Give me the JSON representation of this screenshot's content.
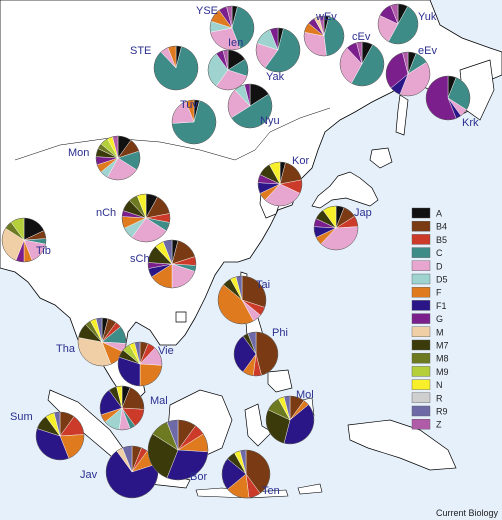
{
  "colors": {
    "A": "#111111",
    "B4": "#7a3b14",
    "B5": "#cc3b2a",
    "C": "#3d8c88",
    "D": "#e7a6cf",
    "D5": "#9fd3cf",
    "F": "#e07a1f",
    "F1": "#2b1688",
    "G": "#7b1f8c",
    "M": "#f1cfa6",
    "M7": "#3a3a0a",
    "M8": "#6d7a22",
    "M9": "#b4cf3a",
    "N": "#f7ef2a",
    "R": "#cfcfcf",
    "R9": "#6e6aa8",
    "Z": "#b05ba8",
    "sea": "#e6f0fb",
    "land": "#ffffff",
    "coast": "#000000",
    "label": "#2b2f8f"
  },
  "credit": "Current Biology",
  "chart_data": {
    "type": "pie",
    "title": "",
    "legend": {
      "placement": "right",
      "entries": [
        "A",
        "B4",
        "B5",
        "C",
        "D",
        "D5",
        "F",
        "F1",
        "G",
        "M",
        "M7",
        "M8",
        "M9",
        "N",
        "R",
        "R9",
        "Z"
      ]
    },
    "pies": [
      {
        "name": "YSE",
        "values": {
          "A": 4,
          "C": 40,
          "D": 28,
          "D5": 8,
          "F": 10,
          "G": 6,
          "Z": 4
        }
      },
      {
        "name": "Ien",
        "values": {
          "A": 16,
          "C": 14,
          "D": 30,
          "D5": 30,
          "G": 6,
          "Z": 4
        }
      },
      {
        "name": "wEv",
        "values": {
          "A": 4,
          "C": 44,
          "D": 30,
          "F": 8,
          "G": 6,
          "Z": 4,
          "M": 4
        }
      },
      {
        "name": "Yuk",
        "values": {
          "A": 8,
          "C": 50,
          "D": 24,
          "G": 12,
          "Z": 6
        }
      },
      {
        "name": "STE",
        "values": {
          "A": 4,
          "C": 84,
          "D": 6,
          "F": 6
        }
      },
      {
        "name": "Yak",
        "values": {
          "A": 4,
          "C": 56,
          "D": 20,
          "D5": 14,
          "G": 6
        }
      },
      {
        "name": "cEv",
        "values": {
          "A": 8,
          "C": 50,
          "D": 30,
          "G": 8,
          "Z": 4
        }
      },
      {
        "name": "eEv",
        "values": {
          "A": 6,
          "C": 10,
          "D": 40,
          "G": 32,
          "F1": 8,
          "Z": 4
        }
      },
      {
        "name": "Tuv",
        "values": {
          "A": 4,
          "C": 70,
          "D": 20,
          "F": 6
        }
      },
      {
        "name": "Nyu",
        "values": {
          "A": 16,
          "C": 50,
          "D": 22,
          "D5": 8,
          "G": 4
        }
      },
      {
        "name": "Krk",
        "values": {
          "A": 6,
          "C": 28,
          "G": 56,
          "Y": 0,
          "F1": 4,
          "D": 6
        }
      },
      {
        "name": "Mon",
        "values": {
          "A": 10,
          "B4": 10,
          "C": 14,
          "D": 24,
          "D5": 6,
          "F": 6,
          "G": 6,
          "M7": 6,
          "M8": 4,
          "N": 4,
          "Z": 4,
          "M9": 6
        }
      },
      {
        "name": "Kor",
        "values": {
          "A": 4,
          "B4": 18,
          "B5": 10,
          "D": 30,
          "F": 6,
          "G": 6,
          "M7": 10,
          "N": 8,
          "F1": 8
        }
      },
      {
        "name": "nCh",
        "values": {
          "A": 8,
          "B4": 14,
          "B5": 6,
          "C": 6,
          "D": 26,
          "D5": 8,
          "F": 8,
          "M7": 8,
          "M8": 6,
          "N": 6,
          "G": 4
        }
      },
      {
        "name": "Jap",
        "values": {
          "A": 6,
          "B4": 10,
          "B5": 8,
          "D": 38,
          "F": 6,
          "G": 6,
          "M7": 8,
          "N": 10,
          "F1": 8
        }
      },
      {
        "name": "Tib",
        "values": {
          "A": 18,
          "B4": 6,
          "C": 4,
          "D": 16,
          "F": 6,
          "M": 28,
          "M8": 6,
          "M9": 10,
          "G": 6
        }
      },
      {
        "name": "sCh",
        "values": {
          "A": 4,
          "B4": 16,
          "B5": 6,
          "C": 4,
          "D": 20,
          "F": 16,
          "M7": 12,
          "N": 6,
          "F1": 6,
          "R9": 6,
          "G": 4
        }
      },
      {
        "name": "Tai",
        "values": {
          "B4": 30,
          "B5": 6,
          "D": 6,
          "F": 44,
          "M7": 6,
          "N": 4,
          "R9": 4
        }
      },
      {
        "name": "Phi",
        "values": {
          "B4": 46,
          "B5": 6,
          "F1": 30,
          "M7": 4,
          "F": 8,
          "E": 0,
          "R9": 6
        }
      },
      {
        "name": "Tha",
        "values": {
          "A": 4,
          "B4": 6,
          "B5": 4,
          "C": 12,
          "D": 6,
          "F": 12,
          "M": 34,
          "M7": 10,
          "M8": 4,
          "R9": 4,
          "N": 4
        }
      },
      {
        "name": "Vie",
        "values": {
          "B4": 6,
          "B5": 6,
          "D": 14,
          "F": 24,
          "F1": 30,
          "M7": 6,
          "M9": 6,
          "N": 4,
          "R9": 4
        }
      },
      {
        "name": "Mal",
        "values": {
          "A": 6,
          "B4": 20,
          "B5": 14,
          "C": 4,
          "D": 8,
          "D5": 12,
          "F": 6,
          "F1": 20,
          "M7": 6,
          "N": 4
        }
      },
      {
        "name": "Mol",
        "values": {
          "B4": 10,
          "F": 4,
          "F1": 40,
          "M7": 28,
          "M8": 10,
          "N": 4,
          "R9": 4
        }
      },
      {
        "name": "Sum",
        "values": {
          "B4": 10,
          "B5": 14,
          "F": 20,
          "F1": 36,
          "M7": 10,
          "N": 6,
          "R9": 4
        }
      },
      {
        "name": "Jav",
        "values": {
          "B4": 6,
          "B5": 4,
          "F": 10,
          "F1": 70,
          "M": 4,
          "R9": 6
        }
      },
      {
        "name": "Bor",
        "values": {
          "B4": 10,
          "B5": 6,
          "F": 10,
          "F1": 30,
          "M7": 28,
          "M8": 10,
          "R9": 6
        }
      },
      {
        "name": "Ten",
        "values": {
          "B4": 40,
          "B5": 8,
          "F": 16,
          "F1": 22,
          "M7": 6,
          "R9": 4,
          "N": 4
        }
      }
    ]
  }
}
